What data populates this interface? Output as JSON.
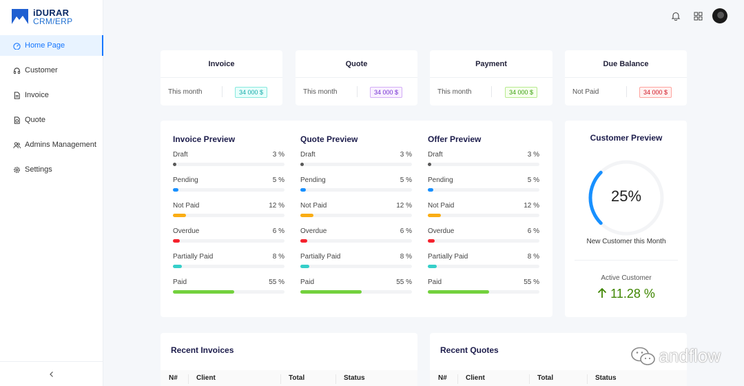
{
  "brand": {
    "name": "iDURAR",
    "sub": "CRM/ERP"
  },
  "sidebar": {
    "items": [
      {
        "label": "Home Page",
        "icon": "dashboard-icon",
        "active": true
      },
      {
        "label": "Customer",
        "icon": "headphones-icon"
      },
      {
        "label": "Invoice",
        "icon": "file-icon"
      },
      {
        "label": "Quote",
        "icon": "file-sync-icon"
      },
      {
        "label": "Admins Management",
        "icon": "team-icon"
      },
      {
        "label": "Settings",
        "icon": "gear-icon"
      }
    ],
    "collapse_icon": "chevron-left-icon"
  },
  "header": {
    "icons": [
      "bell-icon",
      "apps-icon",
      "avatar"
    ]
  },
  "stats": [
    {
      "title": "Invoice",
      "period": "This month",
      "value": "34 000 $",
      "color": "cyan"
    },
    {
      "title": "Quote",
      "period": "This month",
      "value": "34 000 $",
      "color": "purple"
    },
    {
      "title": "Payment",
      "period": "This month",
      "value": "34 000 $",
      "color": "green"
    },
    {
      "title": "Due Balance",
      "period": "Not Paid",
      "value": "34 000 $",
      "color": "red"
    }
  ],
  "previews": [
    {
      "title": "Invoice Preview",
      "rows": [
        {
          "label": "Draft",
          "pct": "3 %",
          "value": 3,
          "color": "#595959"
        },
        {
          "label": "Pending",
          "pct": "5 %",
          "value": 5,
          "color": "#1890ff"
        },
        {
          "label": "Not Paid",
          "pct": "12 %",
          "value": 12,
          "color": "#faad14"
        },
        {
          "label": "Overdue",
          "pct": "6 %",
          "value": 6,
          "color": "#f5222d"
        },
        {
          "label": "Partially Paid",
          "pct": "8 %",
          "value": 8,
          "color": "#36cfc9"
        },
        {
          "label": "Paid",
          "pct": "55 %",
          "value": 55,
          "color": "#73d13d"
        }
      ]
    },
    {
      "title": "Quote Preview",
      "rows": [
        {
          "label": "Draft",
          "pct": "3 %",
          "value": 3,
          "color": "#595959"
        },
        {
          "label": "Pending",
          "pct": "5 %",
          "value": 5,
          "color": "#1890ff"
        },
        {
          "label": "Not Paid",
          "pct": "12 %",
          "value": 12,
          "color": "#faad14"
        },
        {
          "label": "Overdue",
          "pct": "6 %",
          "value": 6,
          "color": "#f5222d"
        },
        {
          "label": "Partially Paid",
          "pct": "8 %",
          "value": 8,
          "color": "#36cfc9"
        },
        {
          "label": "Paid",
          "pct": "55 %",
          "value": 55,
          "color": "#73d13d"
        }
      ]
    },
    {
      "title": "Offer Preview",
      "rows": [
        {
          "label": "Draft",
          "pct": "3 %",
          "value": 3,
          "color": "#595959"
        },
        {
          "label": "Pending",
          "pct": "5 %",
          "value": 5,
          "color": "#1890ff"
        },
        {
          "label": "Not Paid",
          "pct": "12 %",
          "value": 12,
          "color": "#faad14"
        },
        {
          "label": "Overdue",
          "pct": "6 %",
          "value": 6,
          "color": "#f5222d"
        },
        {
          "label": "Partially Paid",
          "pct": "8 %",
          "value": 8,
          "color": "#36cfc9"
        },
        {
          "label": "Paid",
          "pct": "55 %",
          "value": 55,
          "color": "#73d13d"
        }
      ]
    }
  ],
  "customer": {
    "title": "Customer Preview",
    "percent_text": "25%",
    "percent": 25,
    "sub": "New Customer this Month",
    "active_label": "Active Customer",
    "active_value": "11.28 %",
    "active_color": "#3f8600",
    "gauge_color": "#1890ff"
  },
  "recent_invoices": {
    "title": "Recent Invoices",
    "columns": [
      "N#",
      "Client",
      "Total",
      "Status"
    ]
  },
  "recent_quotes": {
    "title": "Recent Quotes",
    "columns": [
      "N#",
      "Client",
      "Total",
      "Status"
    ]
  },
  "watermark": {
    "text": "andflow",
    "icon": "wechat-icon"
  }
}
